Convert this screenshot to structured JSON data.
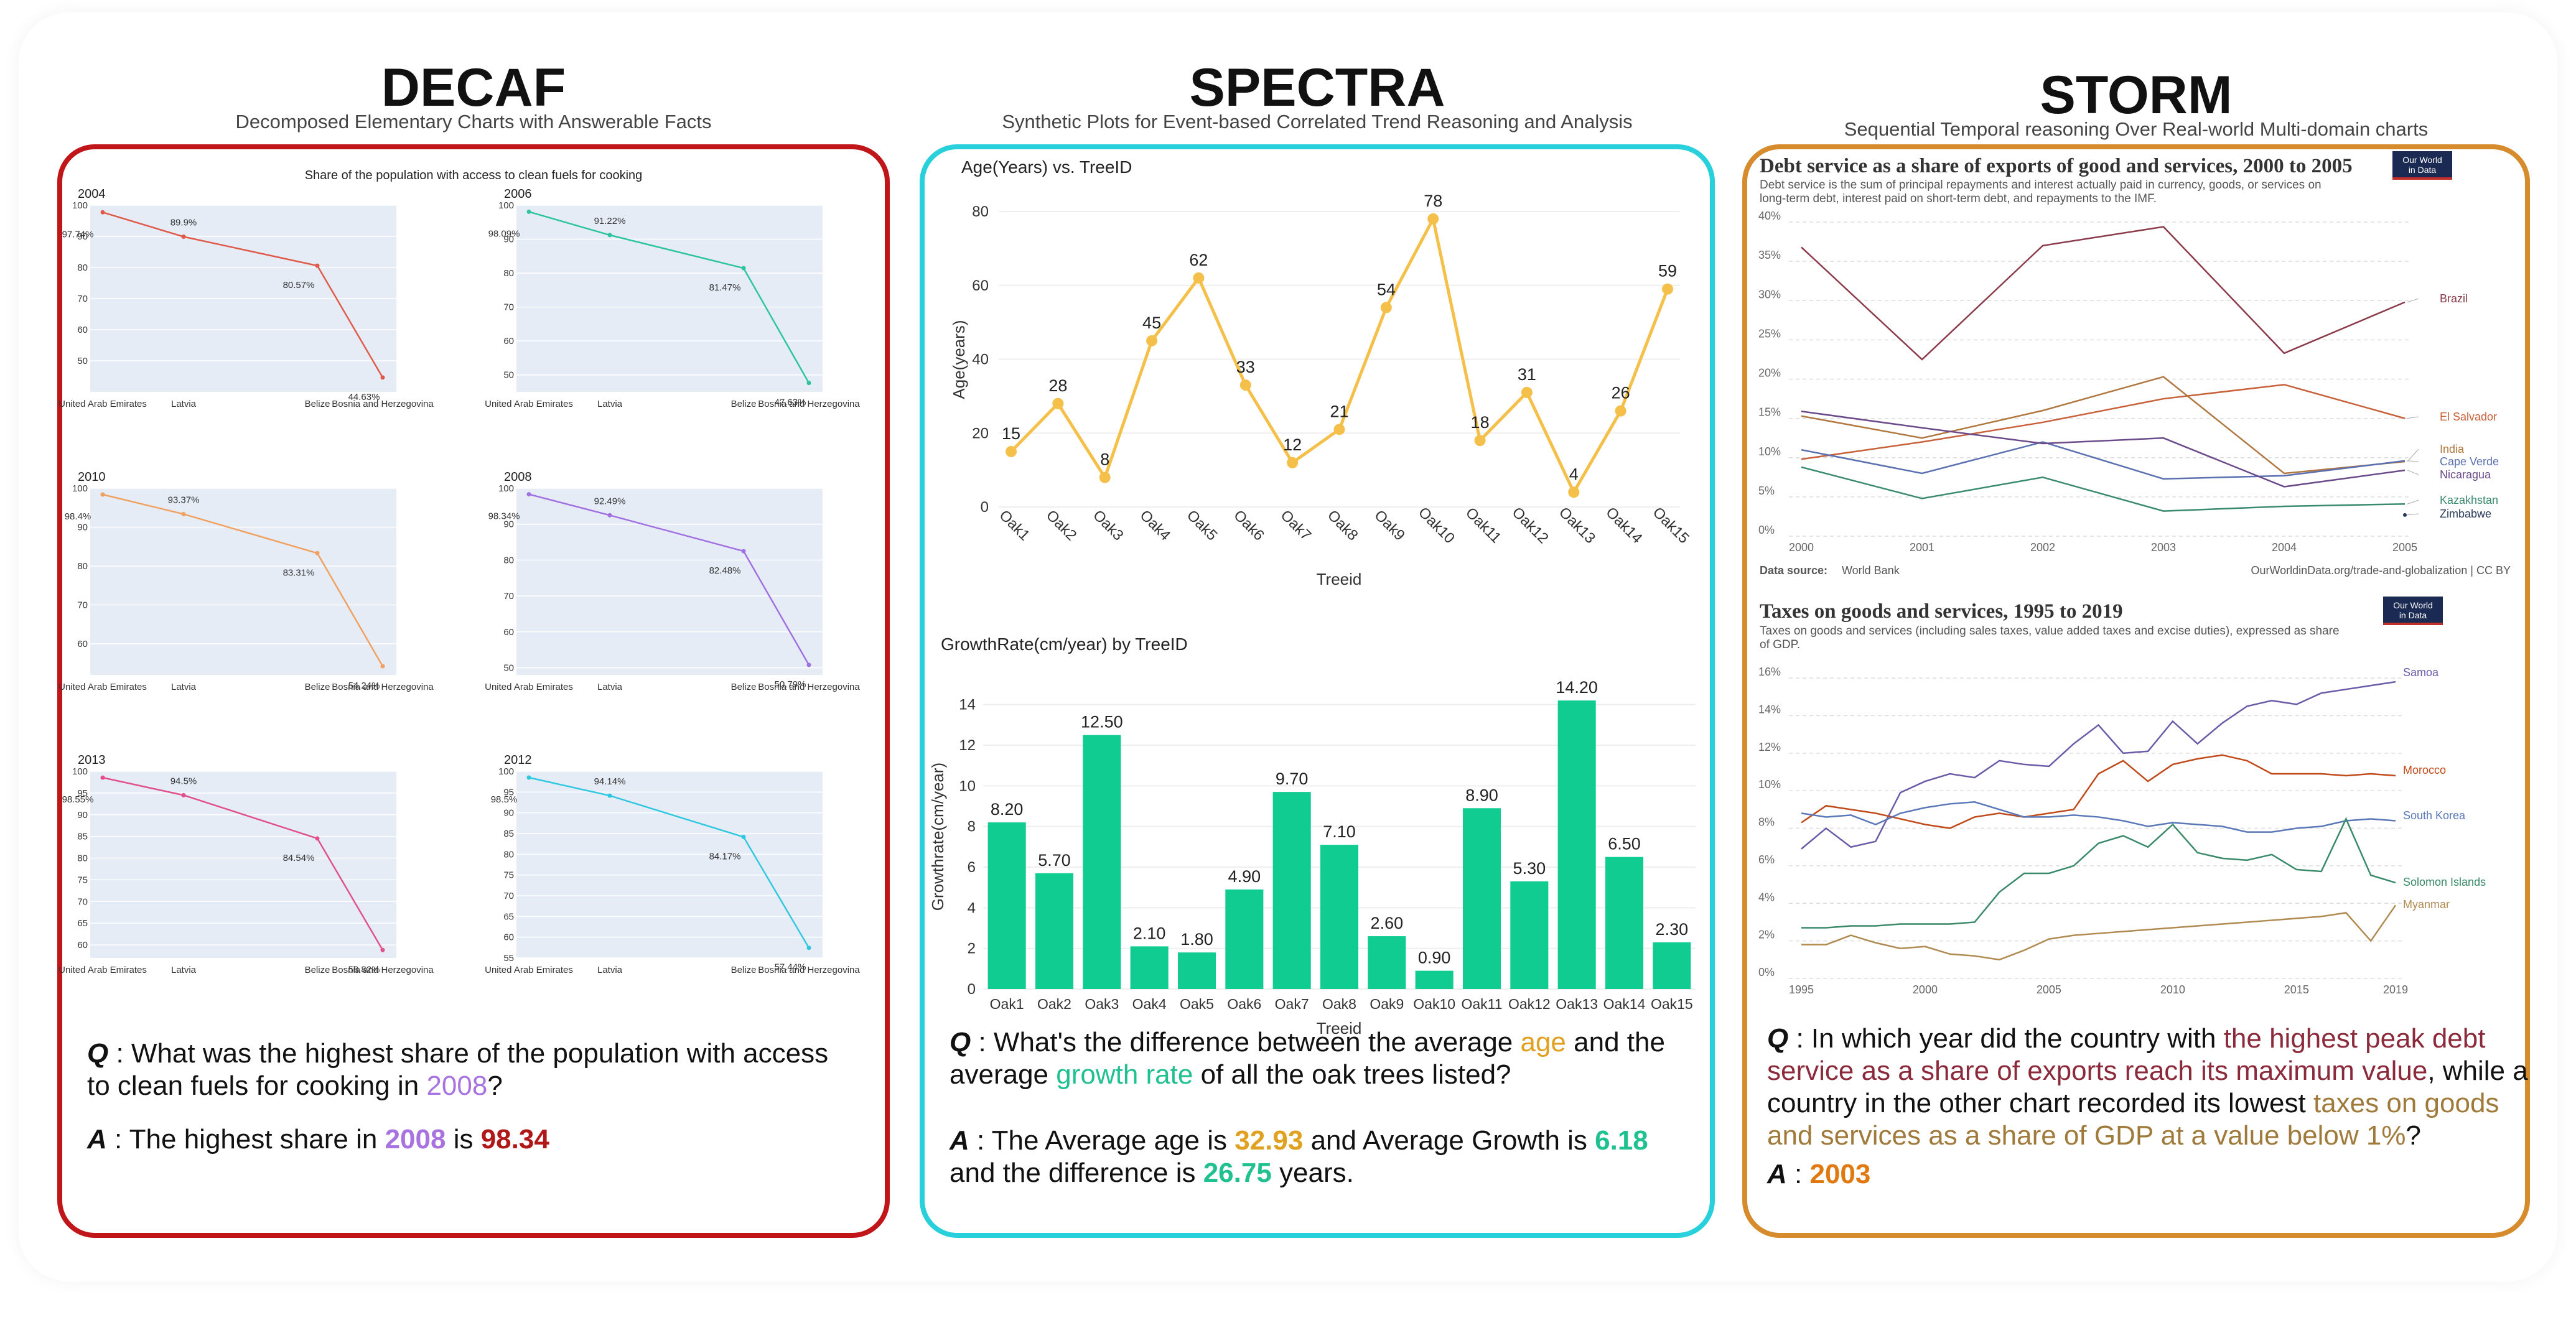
{
  "panels": {
    "decaf": {
      "title": "DECAF",
      "subtitle": "Decomposed Elementary Charts with Answerable Facts",
      "q_prefix": "Q",
      "q_text": " : What was the highest share of the population with access to clean fuels for cooking in ",
      "q_year": "2008",
      "q_end": "?",
      "a_prefix": "A",
      "a_text": " : The highest share in ",
      "a_year": "2008",
      "a_mid": " is ",
      "a_value": "98.34",
      "colors": {
        "year": "#a873e0",
        "value": "#b01818"
      }
    },
    "spectra": {
      "title": "SPECTRA",
      "subtitle": "Synthetic Plots for Event-based Correlated Trend Reasoning and Analysis",
      "q_prefix": "Q",
      "q_text1": " : What's the difference between the average ",
      "q_age": "age",
      "q_text2": " and the average ",
      "q_growth": "growth rate",
      "q_text3": " of all the oak trees listed?",
      "a_prefix": "A",
      "a_text1": " : The Average age is ",
      "a_age": "32.93",
      "a_text2": " and Average Growth is ",
      "a_growth": "6.18",
      "a_text3": " and the difference is ",
      "a_diff": "26.75",
      "a_text4": " years.",
      "colors": {
        "age": "#e0a020",
        "growth": "#20c090"
      }
    },
    "storm": {
      "title": "STORM",
      "subtitle": "Sequential Temporal reasoning Over Real-world Multi-domain charts",
      "q_prefix": "Q",
      "q_text1": " : In which year did the country with ",
      "q_hl1": "the highest peak debt service as a share of exports reach its maximum value",
      "q_text2": ", while a country in the other chart recorded its lowest ",
      "q_hl2": "taxes on goods and services as a share of GDP at a value below 1%",
      "q_text3": "?",
      "a_prefix": "A",
      "a_text": " : ",
      "a_value": "2003",
      "colors": {
        "hl1": "#8b2a3a",
        "hl2": "#a07a3a",
        "answer": "#e07a10"
      }
    }
  },
  "chart_data": [
    {
      "type": "line",
      "title": "Share of the population with access to clean fuels for cooking",
      "categories": [
        "United Arab Emirates",
        "Latvia",
        "Belize",
        "Bosnia and Herzegovina"
      ],
      "subplots": [
        {
          "label": "2004",
          "values": [
            97.74,
            89.9,
            80.57,
            44.63
          ],
          "labels": [
            "97.74%",
            "89.9%",
            "80.57%",
            "44.63%"
          ],
          "ylim": [
            40,
            100
          ],
          "ticks": [
            50,
            60,
            70,
            80,
            90,
            100
          ],
          "color": "#e05a4a"
        },
        {
          "label": "2006",
          "values": [
            98.09,
            91.22,
            81.47,
            47.63
          ],
          "labels": [
            "98.09%",
            "91.22%",
            "81.47%",
            "47.63%"
          ],
          "ylim": [
            45,
            100
          ],
          "ticks": [
            50,
            60,
            70,
            80,
            90,
            100
          ],
          "color": "#2ec4a0"
        },
        {
          "label": "2010",
          "values": [
            98.4,
            93.37,
            83.31,
            54.24
          ],
          "labels": [
            "98.4%",
            "93.37%",
            "83.31%",
            "54.24%"
          ],
          "ylim": [
            52,
            100
          ],
          "ticks": [
            60,
            70,
            80,
            90,
            100
          ],
          "color": "#f0a060"
        },
        {
          "label": "2008",
          "values": [
            98.34,
            92.49,
            82.48,
            50.79
          ],
          "labels": [
            "98.34%",
            "92.49%",
            "82.48%",
            "50.79%"
          ],
          "ylim": [
            48,
            100
          ],
          "ticks": [
            50,
            60,
            70,
            80,
            90,
            100
          ],
          "color": "#a070e0"
        },
        {
          "label": "2013",
          "values": [
            98.55,
            94.5,
            84.54,
            58.82
          ],
          "labels": [
            "98.55%",
            "94.5%",
            "84.54%",
            "58.82%"
          ],
          "ylim": [
            57,
            100
          ],
          "ticks": [
            60,
            65,
            70,
            75,
            80,
            85,
            90,
            95,
            100
          ],
          "color": "#e0508a"
        },
        {
          "label": "2012",
          "values": [
            98.5,
            94.14,
            84.17,
            57.44
          ],
          "labels": [
            "98.5%",
            "94.14%",
            "84.17%",
            "57.44%"
          ],
          "ylim": [
            55,
            100
          ],
          "ticks": [
            55,
            60,
            65,
            70,
            75,
            80,
            85,
            90,
            95,
            100
          ],
          "color": "#30c8e0"
        }
      ]
    },
    {
      "type": "line",
      "title": "Age(Years) vs. TreeID",
      "xlabel": "Treeid",
      "ylabel": "Age(years)",
      "categories": [
        "Oak1",
        "Oak2",
        "Oak3",
        "Oak4",
        "Oak5",
        "Oak6",
        "Oak7",
        "Oak8",
        "Oak9",
        "Oak10",
        "Oak11",
        "Oak12",
        "Oak13",
        "Oak14",
        "Oak15"
      ],
      "values": [
        15,
        28,
        8,
        45,
        62,
        33,
        12,
        21,
        54,
        78,
        18,
        31,
        4,
        26,
        59
      ],
      "ylim": [
        0,
        80
      ],
      "ticks": [
        0,
        20,
        40,
        60,
        80
      ],
      "color": "#f5c04a"
    },
    {
      "type": "bar",
      "title": "GrowthRate(cm/year) by TreeID",
      "xlabel": "Treeid",
      "ylabel": "Growthrate(cm/year)",
      "categories": [
        "Oak1",
        "Oak2",
        "Oak3",
        "Oak4",
        "Oak5",
        "Oak6",
        "Oak7",
        "Oak8",
        "Oak9",
        "Oak10",
        "Oak11",
        "Oak12",
        "Oak13",
        "Oak14",
        "Oak15"
      ],
      "values": [
        8.2,
        5.7,
        12.5,
        2.1,
        1.8,
        4.9,
        9.7,
        7.1,
        2.6,
        0.9,
        8.9,
        5.3,
        14.2,
        6.5,
        2.3
      ],
      "labels": [
        "8.20",
        "5.70",
        "12.50",
        "2.10",
        "1.80",
        "4.90",
        "9.70",
        "7.10",
        "2.60",
        "0.90",
        "8.90",
        "5.30",
        "14.20",
        "6.50",
        "2.30"
      ],
      "ylim": [
        0,
        15
      ],
      "ticks": [
        0,
        2,
        4,
        6,
        8,
        10,
        12,
        14
      ],
      "color": "#10cc90"
    },
    {
      "type": "line",
      "title": "Debt service as a share of exports of good and services, 2000 to 2005",
      "subtitle": "Debt service is the sum of principal repayments and interest actually paid in currency, goods, or services on long-term debt, interest paid on short-term debt, and repayments to the IMF.",
      "logo": "Our World in Data",
      "source_label": "Data source:",
      "source": "World Bank",
      "credit": "OurWorldinData.org/trade-and-globalization | CC BY",
      "x": [
        2000,
        2001,
        2002,
        2003,
        2004,
        2005
      ],
      "ylim": [
        0,
        40
      ],
      "ticks": [
        {
          "v": 0,
          "t": "0%"
        },
        {
          "v": 5,
          "t": "5%"
        },
        {
          "v": 10,
          "t": "10%"
        },
        {
          "v": 15,
          "t": "15%"
        },
        {
          "v": 20,
          "t": "20%"
        },
        {
          "v": 25,
          "t": "25%"
        },
        {
          "v": 30,
          "t": "30%"
        },
        {
          "v": 35,
          "t": "35%"
        },
        {
          "v": 40,
          "t": "40%"
        }
      ],
      "series": [
        {
          "name": "Brazil",
          "color": "#8b3a4a",
          "values": [
            36.8,
            22.5,
            37.0,
            39.4,
            23.3,
            29.8
          ]
        },
        {
          "name": "El Salvador",
          "color": "#c8603a",
          "values": [
            9.8,
            12.0,
            14.5,
            17.5,
            19.3,
            15.0
          ]
        },
        {
          "name": "India",
          "color": "#b07840",
          "values": [
            15.3,
            12.5,
            16.0,
            20.3,
            8.0,
            9.5
          ]
        },
        {
          "name": "Cape Verde",
          "color": "#5a70b0",
          "values": [
            11.0,
            8.0,
            12.0,
            7.3,
            7.7,
            9.6
          ]
        },
        {
          "name": "Nicaragua",
          "color": "#6a4a8a",
          "values": [
            15.9,
            13.8,
            11.8,
            12.5,
            6.3,
            8.4
          ]
        },
        {
          "name": "Kazakhstan",
          "color": "#3a8a70",
          "values": [
            8.8,
            4.8,
            7.5,
            3.2,
            3.8,
            4.1
          ]
        },
        {
          "name": "Zimbabwe",
          "color": "#2a3a5a",
          "values": [
            null,
            null,
            null,
            null,
            null,
            2.7
          ]
        }
      ]
    },
    {
      "type": "line",
      "title": "Taxes on goods and services, 1995 to 2019",
      "subtitle": "Taxes on goods and services (including sales taxes, value added taxes and excise duties), expressed as share of GDP.",
      "logo": "Our World in Data",
      "x": [
        1995,
        1996,
        1997,
        1998,
        1999,
        2000,
        2001,
        2002,
        2003,
        2004,
        2005,
        2006,
        2007,
        2008,
        2009,
        2010,
        2011,
        2012,
        2013,
        2014,
        2015,
        2016,
        2017,
        2018,
        2019
      ],
      "ylim": [
        0,
        16.5
      ],
      "xticks": [
        1995,
        2000,
        2005,
        2010,
        2015,
        2019
      ],
      "ticks": [
        {
          "v": 0,
          "t": "0%"
        },
        {
          "v": 2,
          "t": "2%"
        },
        {
          "v": 4,
          "t": "4%"
        },
        {
          "v": 6,
          "t": "6%"
        },
        {
          "v": 8,
          "t": "8%"
        },
        {
          "v": 10,
          "t": "10%"
        },
        {
          "v": 12,
          "t": "12%"
        },
        {
          "v": 14,
          "t": "14%"
        },
        {
          "v": 16,
          "t": "16%"
        }
      ],
      "series": [
        {
          "name": "Samoa",
          "color": "#6a5aa8",
          "values": [
            6.9,
            8.0,
            7.0,
            7.3,
            9.9,
            10.5,
            10.9,
            10.7,
            11.6,
            11.4,
            11.3,
            12.5,
            13.5,
            12.0,
            12.1,
            13.7,
            12.5,
            13.6,
            14.5,
            14.8,
            14.6,
            15.2,
            15.4,
            15.6,
            15.8
          ]
        },
        {
          "name": "Morocco",
          "color": "#c04a1a",
          "values": [
            8.3,
            9.2,
            9.0,
            8.8,
            8.5,
            8.2,
            8.0,
            8.6,
            8.8,
            8.6,
            8.8,
            9.0,
            10.9,
            11.6,
            10.5,
            11.4,
            11.7,
            11.9,
            11.6,
            10.9,
            10.9,
            10.9,
            10.8,
            10.9,
            10.8
          ]
        },
        {
          "name": "South Korea",
          "color": "#5a78b8",
          "values": [
            8.8,
            8.6,
            8.7,
            8.2,
            8.8,
            9.1,
            9.3,
            9.4,
            9.0,
            8.6,
            8.6,
            8.7,
            8.6,
            8.4,
            8.1,
            8.3,
            8.2,
            8.1,
            7.8,
            7.8,
            8.0,
            8.1,
            8.4,
            8.5,
            8.4
          ]
        },
        {
          "name": "Solomon Islands",
          "color": "#3a8a6a",
          "values": [
            2.7,
            2.7,
            2.8,
            2.8,
            2.9,
            2.9,
            2.9,
            3.0,
            4.6,
            5.6,
            5.6,
            6.0,
            7.2,
            7.6,
            7.0,
            8.2,
            6.7,
            6.4,
            6.3,
            6.6,
            5.8,
            5.7,
            8.5,
            5.5,
            5.1
          ]
        },
        {
          "name": "Myanmar",
          "color": "#b08a50",
          "values": [
            1.8,
            1.8,
            2.3,
            1.9,
            1.6,
            1.7,
            1.3,
            1.2,
            1.0,
            1.5,
            2.1,
            2.3,
            2.4,
            2.5,
            2.6,
            2.7,
            2.8,
            2.9,
            3.0,
            3.1,
            3.2,
            3.3,
            3.5,
            2.0,
            3.9
          ]
        }
      ]
    }
  ]
}
